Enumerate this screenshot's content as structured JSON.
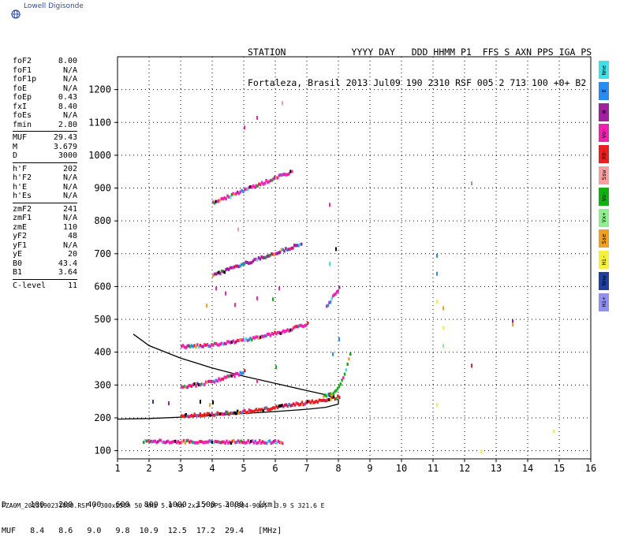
{
  "brand": {
    "name": "Lowell Digisonde"
  },
  "header": {
    "line1": "STATION            YYYY DAY   DDD HHMM P1  FFS S AXN PPS IGA PS",
    "line2": "Fortaleza, Brasil 2013 Jul09 190 2310 RSF 005 2 713 100 +0+ B2"
  },
  "params": [
    {
      "k": "foF2",
      "v": "8.00"
    },
    {
      "k": "foF1",
      "v": "N/A"
    },
    {
      "k": "foF1p",
      "v": "N/A"
    },
    {
      "k": "foE",
      "v": "N/A"
    },
    {
      "k": "foEp",
      "v": "0.43"
    },
    {
      "k": "fxI",
      "v": "8.40"
    },
    {
      "k": "foEs",
      "v": "N/A"
    },
    {
      "k": "fmin",
      "v": "2.80"
    },
    {
      "sep": true
    },
    {
      "k": "MUF",
      "v": "29.43"
    },
    {
      "k": "M",
      "v": "3.679"
    },
    {
      "k": "D",
      "v": "3000"
    },
    {
      "sep": true
    },
    {
      "k": "h'F",
      "v": "202"
    },
    {
      "k": "h'F2",
      "v": "N/A"
    },
    {
      "k": "h'E",
      "v": "N/A"
    },
    {
      "k": "h'Es",
      "v": "N/A"
    },
    {
      "sep": true
    },
    {
      "k": "zmF2",
      "v": "241"
    },
    {
      "k": "zmF1",
      "v": "N/A"
    },
    {
      "k": "zmE",
      "v": "110"
    },
    {
      "k": "yF2",
      "v": "48"
    },
    {
      "k": "yF1",
      "v": "N/A"
    },
    {
      "k": "yE",
      "v": "20"
    },
    {
      "k": "B0",
      "v": "43.4"
    },
    {
      "k": "B1",
      "v": "3.64"
    },
    {
      "sep": true
    },
    {
      "k": "C-level",
      "v": "11"
    }
  ],
  "legend": [
    {
      "label": "Nne",
      "color": "#40e0e8"
    },
    {
      "label": "E",
      "color": "#2a8cf0"
    },
    {
      "label": "W",
      "color": "#a020a0"
    },
    {
      "label": "Vo-",
      "color": "#f020b0"
    },
    {
      "label": "X0-",
      "color": "#e82020"
    },
    {
      "label": "Ssw",
      "color": "#f4a0a0"
    },
    {
      "label": "Vo-",
      "color": "#10b010"
    },
    {
      "label": "Vx+",
      "color": "#90ee90"
    },
    {
      "label": "Sse",
      "color": "#f0a020"
    },
    {
      "label": "Hi-",
      "color": "#f4f040"
    },
    {
      "label": "Nnw",
      "color": "#2040a0"
    },
    {
      "label": "Hi+",
      "color": "#9090f0"
    }
  ],
  "footer": {
    "d_row": "D     100   200   400   600   800  1000  1500  3000   [km]",
    "muf_row": "MUF   8.4   8.6   9.0   9.8  10.9  12.5  17.2  29.4   [MHz]",
    "filename": "FZA0M_2013190231000.RSF / 300x256h 50 kHz 5.0 km 2x2 / DPS-4 (904-904)  3.9 S 321.6 E"
  },
  "chart_data": {
    "type": "scatter",
    "xlim": [
      1,
      16
    ],
    "ylim": [
      75,
      1300
    ],
    "x_ticks": [
      1,
      2,
      3,
      4,
      5,
      6,
      7,
      8,
      9,
      10,
      11,
      12,
      13,
      14,
      15,
      16
    ],
    "y_ticks": [
      100,
      200,
      300,
      400,
      500,
      600,
      700,
      800,
      900,
      1000,
      1100,
      1200
    ],
    "grid": true,
    "profile_curve": {
      "name": "",
      "f": [
        1.0,
        2.0,
        3.0,
        4.0,
        5.0,
        6.0,
        7.0,
        7.6,
        8.0,
        8.0,
        7.6,
        7.0,
        6.0,
        5.0,
        4.0,
        3.0,
        2.0,
        1.5
      ],
      "h": [
        196,
        198,
        202,
        207,
        213,
        219,
        226,
        232,
        242,
        255,
        270,
        283,
        305,
        327,
        352,
        382,
        420,
        455
      ]
    },
    "traces": [
      {
        "color": "#e82020",
        "f_start": 3.0,
        "f_end": 8.0,
        "h_start": 211,
        "h_end": 268,
        "curve": 0.6
      },
      {
        "color": "#f020b0",
        "f_start": 1.8,
        "f_end": 6.2,
        "h_start": 133,
        "h_end": 131,
        "curve": 0
      },
      {
        "color": "#10b010",
        "f_start": 7.5,
        "f_end": 8.35,
        "h_start": 272,
        "h_end": 400,
        "curve": 1.6
      },
      {
        "color": "#f020b0",
        "f_start": 3.0,
        "f_end": 7.0,
        "h_start": 422,
        "h_end": 490,
        "curve": 0.8
      },
      {
        "color": "#f020b0",
        "f_start": 3.0,
        "f_end": 5.0,
        "h_start": 300,
        "h_end": 345,
        "curve": 0.5
      },
      {
        "color": "#f020b0",
        "f_start": 4.0,
        "f_end": 6.5,
        "h_start": 860,
        "h_end": 955,
        "curve": 0
      },
      {
        "color": "#a020a0",
        "f_start": 4.0,
        "f_end": 6.8,
        "h_start": 640,
        "h_end": 735,
        "curve": 0
      },
      {
        "color": "#f020b0",
        "f_start": 7.6,
        "f_end": 8.0,
        "h_start": 545,
        "h_end": 600,
        "curve": 0
      }
    ],
    "points": [
      {
        "f": 5.4,
        "h": 1120,
        "color": "#f020b0"
      },
      {
        "f": 5.0,
        "h": 1090,
        "color": "#f020b0"
      },
      {
        "f": 6.2,
        "h": 1165,
        "color": "#f4a0a0"
      },
      {
        "f": 7.7,
        "h": 855,
        "color": "#f020b0"
      },
      {
        "f": 7.9,
        "h": 720,
        "color": "#000000"
      },
      {
        "f": 7.7,
        "h": 675,
        "color": "#40e0e8"
      },
      {
        "f": 4.8,
        "h": 780,
        "color": "#f4a0a0"
      },
      {
        "f": 5.4,
        "h": 570,
        "color": "#f020b0"
      },
      {
        "f": 5.9,
        "h": 567,
        "color": "#10b010"
      },
      {
        "f": 4.4,
        "h": 585,
        "color": "#f020b0"
      },
      {
        "f": 4.1,
        "h": 600,
        "color": "#f020b0"
      },
      {
        "f": 3.8,
        "h": 548,
        "color": "#f0a020"
      },
      {
        "f": 4.7,
        "h": 550,
        "color": "#f020b0"
      },
      {
        "f": 6.1,
        "h": 600,
        "color": "#f020b0"
      },
      {
        "f": 11.1,
        "h": 700,
        "color": "#2a8cf0"
      },
      {
        "f": 11.1,
        "h": 645,
        "color": "#2a8cf0"
      },
      {
        "f": 11.1,
        "h": 560,
        "color": "#f4f040"
      },
      {
        "f": 11.3,
        "h": 540,
        "color": "#f0a020"
      },
      {
        "f": 11.3,
        "h": 480,
        "color": "#f4f040"
      },
      {
        "f": 11.3,
        "h": 425,
        "color": "#90ee90"
      },
      {
        "f": 12.2,
        "h": 365,
        "color": "#e82020"
      },
      {
        "f": 12.2,
        "h": 920,
        "color": "#9090f0"
      },
      {
        "f": 13.5,
        "h": 500,
        "color": "#a020a0"
      },
      {
        "f": 13.5,
        "h": 490,
        "color": "#f0a020"
      },
      {
        "f": 14.8,
        "h": 165,
        "color": "#f4f040"
      },
      {
        "f": 11.1,
        "h": 245,
        "color": "#f4f040"
      },
      {
        "f": 12.5,
        "h": 103,
        "color": "#f4f040"
      },
      {
        "f": 8.0,
        "h": 445,
        "color": "#2a8cf0"
      },
      {
        "f": 3.6,
        "h": 255,
        "color": "#000000"
      },
      {
        "f": 4.0,
        "h": 253,
        "color": "#000000"
      },
      {
        "f": 2.6,
        "h": 250,
        "color": "#a020a0"
      },
      {
        "f": 2.1,
        "h": 255,
        "color": "#2040a0"
      },
      {
        "f": 6.0,
        "h": 360,
        "color": "#10b010"
      },
      {
        "f": 5.4,
        "h": 318,
        "color": "#f020b0"
      },
      {
        "f": 7.8,
        "h": 400,
        "color": "#2a8cf0"
      },
      {
        "f": 3.9,
        "h": 245,
        "color": "#f0a020"
      }
    ]
  }
}
